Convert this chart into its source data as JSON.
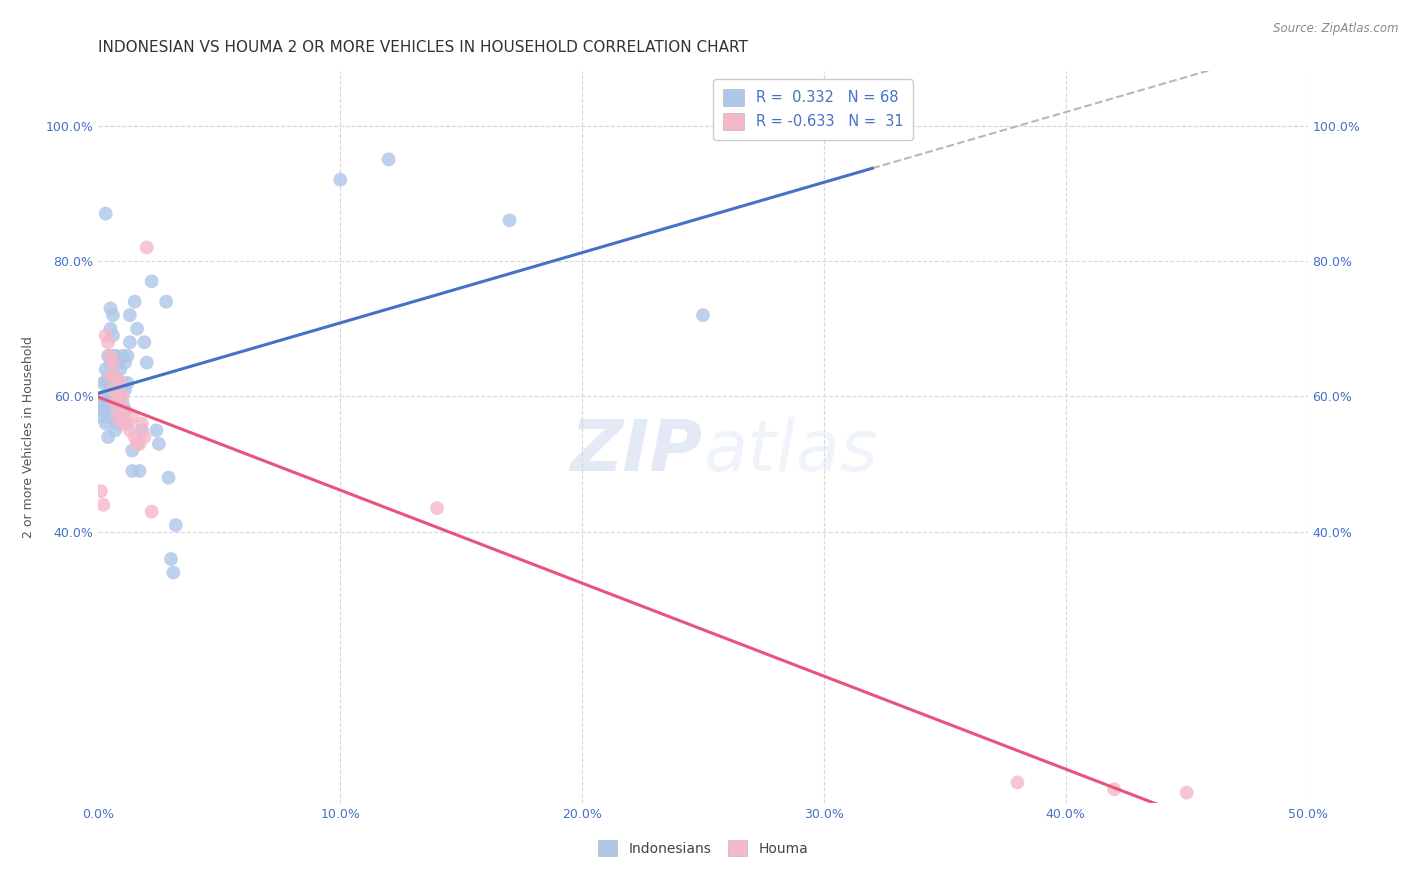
{
  "title": "INDONESIAN VS HOUMA 2 OR MORE VEHICLES IN HOUSEHOLD CORRELATION CHART",
  "source": "Source: ZipAtlas.com",
  "ylabel": "2 or more Vehicles in Household",
  "xlim": [
    0.0,
    0.5
  ],
  "ylim": [
    0.0,
    1.08
  ],
  "indonesian_color": "#aec6e8",
  "houma_color": "#f4b8c8",
  "trendline_indonesian_color": "#4472c4",
  "trendline_houma_color": "#e8547a",
  "trendline_dashed_color": "#b8b8b8",
  "indonesian_points": [
    [
      0.001,
      0.59
    ],
    [
      0.001,
      0.57
    ],
    [
      0.002,
      0.62
    ],
    [
      0.002,
      0.6
    ],
    [
      0.002,
      0.58
    ],
    [
      0.003,
      0.64
    ],
    [
      0.003,
      0.62
    ],
    [
      0.003,
      0.59
    ],
    [
      0.003,
      0.56
    ],
    [
      0.003,
      0.87
    ],
    [
      0.004,
      0.66
    ],
    [
      0.004,
      0.63
    ],
    [
      0.004,
      0.6
    ],
    [
      0.004,
      0.57
    ],
    [
      0.004,
      0.54
    ],
    [
      0.005,
      0.65
    ],
    [
      0.005,
      0.62
    ],
    [
      0.005,
      0.59
    ],
    [
      0.005,
      0.57
    ],
    [
      0.005,
      0.73
    ],
    [
      0.005,
      0.7
    ],
    [
      0.006,
      0.66
    ],
    [
      0.006,
      0.63
    ],
    [
      0.006,
      0.6
    ],
    [
      0.006,
      0.72
    ],
    [
      0.006,
      0.69
    ],
    [
      0.007,
      0.66
    ],
    [
      0.007,
      0.63
    ],
    [
      0.007,
      0.6
    ],
    [
      0.007,
      0.57
    ],
    [
      0.007,
      0.55
    ],
    [
      0.008,
      0.65
    ],
    [
      0.008,
      0.62
    ],
    [
      0.008,
      0.59
    ],
    [
      0.008,
      0.56
    ],
    [
      0.009,
      0.64
    ],
    [
      0.009,
      0.6
    ],
    [
      0.009,
      0.57
    ],
    [
      0.01,
      0.66
    ],
    [
      0.01,
      0.62
    ],
    [
      0.01,
      0.59
    ],
    [
      0.011,
      0.65
    ],
    [
      0.011,
      0.61
    ],
    [
      0.011,
      0.58
    ],
    [
      0.012,
      0.66
    ],
    [
      0.012,
      0.62
    ],
    [
      0.013,
      0.72
    ],
    [
      0.013,
      0.68
    ],
    [
      0.014,
      0.49
    ],
    [
      0.014,
      0.52
    ],
    [
      0.015,
      0.74
    ],
    [
      0.016,
      0.7
    ],
    [
      0.017,
      0.49
    ],
    [
      0.018,
      0.55
    ],
    [
      0.019,
      0.68
    ],
    [
      0.02,
      0.65
    ],
    [
      0.022,
      0.77
    ],
    [
      0.024,
      0.55
    ],
    [
      0.025,
      0.53
    ],
    [
      0.028,
      0.74
    ],
    [
      0.029,
      0.48
    ],
    [
      0.03,
      0.36
    ],
    [
      0.031,
      0.34
    ],
    [
      0.032,
      0.41
    ],
    [
      0.1,
      0.92
    ],
    [
      0.12,
      0.95
    ],
    [
      0.17,
      0.86
    ],
    [
      0.25,
      0.72
    ]
  ],
  "houma_points": [
    [
      0.001,
      0.46
    ],
    [
      0.002,
      0.44
    ],
    [
      0.003,
      0.69
    ],
    [
      0.004,
      0.68
    ],
    [
      0.005,
      0.66
    ],
    [
      0.005,
      0.63
    ],
    [
      0.006,
      0.65
    ],
    [
      0.006,
      0.61
    ],
    [
      0.007,
      0.63
    ],
    [
      0.007,
      0.59
    ],
    [
      0.008,
      0.6
    ],
    [
      0.008,
      0.57
    ],
    [
      0.009,
      0.62
    ],
    [
      0.009,
      0.58
    ],
    [
      0.01,
      0.6
    ],
    [
      0.01,
      0.56
    ],
    [
      0.011,
      0.58
    ],
    [
      0.012,
      0.56
    ],
    [
      0.013,
      0.55
    ],
    [
      0.014,
      0.57
    ],
    [
      0.015,
      0.54
    ],
    [
      0.016,
      0.53
    ],
    [
      0.017,
      0.53
    ],
    [
      0.018,
      0.56
    ],
    [
      0.019,
      0.54
    ],
    [
      0.02,
      0.82
    ],
    [
      0.022,
      0.43
    ],
    [
      0.14,
      0.435
    ],
    [
      0.38,
      0.03
    ],
    [
      0.42,
      0.02
    ],
    [
      0.45,
      0.015
    ]
  ],
  "background_color": "#ffffff",
  "grid_color": "#d8d8d8",
  "title_fontsize": 11,
  "axis_label_fontsize": 9,
  "tick_fontsize": 9,
  "source_fontsize": 8.5,
  "trendline_indo_start_x": 0.0,
  "trendline_indo_end_x": 0.32,
  "trendline_dash_start_x": 0.32,
  "trendline_dash_end_x": 0.5,
  "trendline_houma_start_x": 0.0,
  "trendline_houma_end_x": 0.5
}
